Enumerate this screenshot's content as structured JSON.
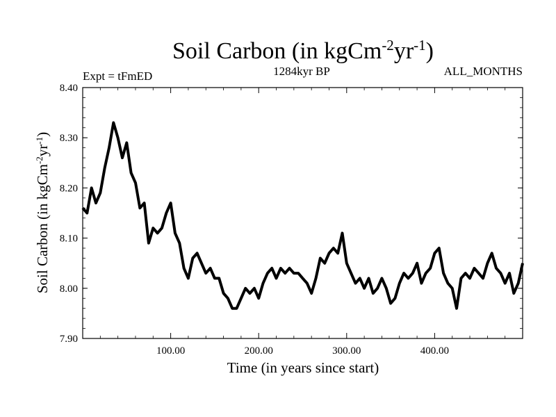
{
  "chart_data": {
    "type": "line",
    "title": {
      "main": "Soil Carbon (in kgCm",
      "sup1": "-2",
      "mid": "yr",
      "sup2": "-1",
      "end": ")"
    },
    "subtitle_left": "Expt = tFmED",
    "subtitle_center": "1284kyr BP",
    "subtitle_right": "ALL_MONTHS",
    "xlabel": "Time (in years since start)",
    "ylabel": {
      "main": "Soil Carbon (in kgCm",
      "sup1": "-2",
      "mid": "yr",
      "sup2": "-1",
      "end": ")"
    },
    "xlim": [
      0,
      500
    ],
    "ylim": [
      7.9,
      8.4
    ],
    "xticks": [
      100,
      200,
      300,
      400
    ],
    "xtick_labels": [
      "100.00",
      "200.00",
      "300.00",
      "400.00"
    ],
    "yticks": [
      7.9,
      8.0,
      8.1,
      8.2,
      8.3,
      8.4
    ],
    "ytick_labels": [
      "7.90",
      "8.00",
      "8.10",
      "8.20",
      "8.30",
      "8.40"
    ],
    "x": [
      0,
      5,
      10,
      15,
      20,
      25,
      30,
      35,
      40,
      45,
      50,
      55,
      60,
      65,
      70,
      75,
      80,
      85,
      90,
      95,
      100,
      105,
      110,
      115,
      120,
      125,
      130,
      135,
      140,
      145,
      150,
      155,
      160,
      165,
      170,
      175,
      180,
      185,
      190,
      195,
      200,
      205,
      210,
      215,
      220,
      225,
      230,
      235,
      240,
      245,
      250,
      255,
      260,
      265,
      270,
      275,
      280,
      285,
      290,
      295,
      300,
      305,
      310,
      315,
      320,
      325,
      330,
      335,
      340,
      345,
      350,
      355,
      360,
      365,
      370,
      375,
      380,
      385,
      390,
      395,
      400,
      405,
      410,
      415,
      420,
      425,
      430,
      435,
      440,
      445,
      450,
      455,
      460,
      465,
      470,
      475,
      480,
      485,
      490,
      495,
      500
    ],
    "values": [
      8.16,
      8.15,
      8.2,
      8.17,
      8.19,
      8.24,
      8.28,
      8.33,
      8.3,
      8.26,
      8.29,
      8.23,
      8.21,
      8.16,
      8.17,
      8.09,
      8.12,
      8.11,
      8.12,
      8.15,
      8.17,
      8.11,
      8.09,
      8.04,
      8.02,
      8.06,
      8.07,
      8.05,
      8.03,
      8.04,
      8.02,
      8.02,
      7.99,
      7.98,
      7.96,
      7.96,
      7.98,
      8.0,
      7.99,
      8.0,
      7.98,
      8.01,
      8.03,
      8.04,
      8.02,
      8.04,
      8.03,
      8.04,
      8.03,
      8.03,
      8.02,
      8.01,
      7.99,
      8.02,
      8.06,
      8.05,
      8.07,
      8.08,
      8.07,
      8.11,
      8.05,
      8.03,
      8.01,
      8.02,
      8.0,
      8.02,
      7.99,
      8.0,
      8.02,
      8.0,
      7.97,
      7.98,
      8.01,
      8.03,
      8.02,
      8.03,
      8.05,
      8.01,
      8.03,
      8.04,
      8.07,
      8.08,
      8.03,
      8.01,
      8.0,
      7.96,
      8.02,
      8.03,
      8.02,
      8.04,
      8.03,
      8.02,
      8.05,
      8.07,
      8.04,
      8.03,
      8.01,
      8.03,
      7.99,
      8.01,
      8.05
    ]
  }
}
